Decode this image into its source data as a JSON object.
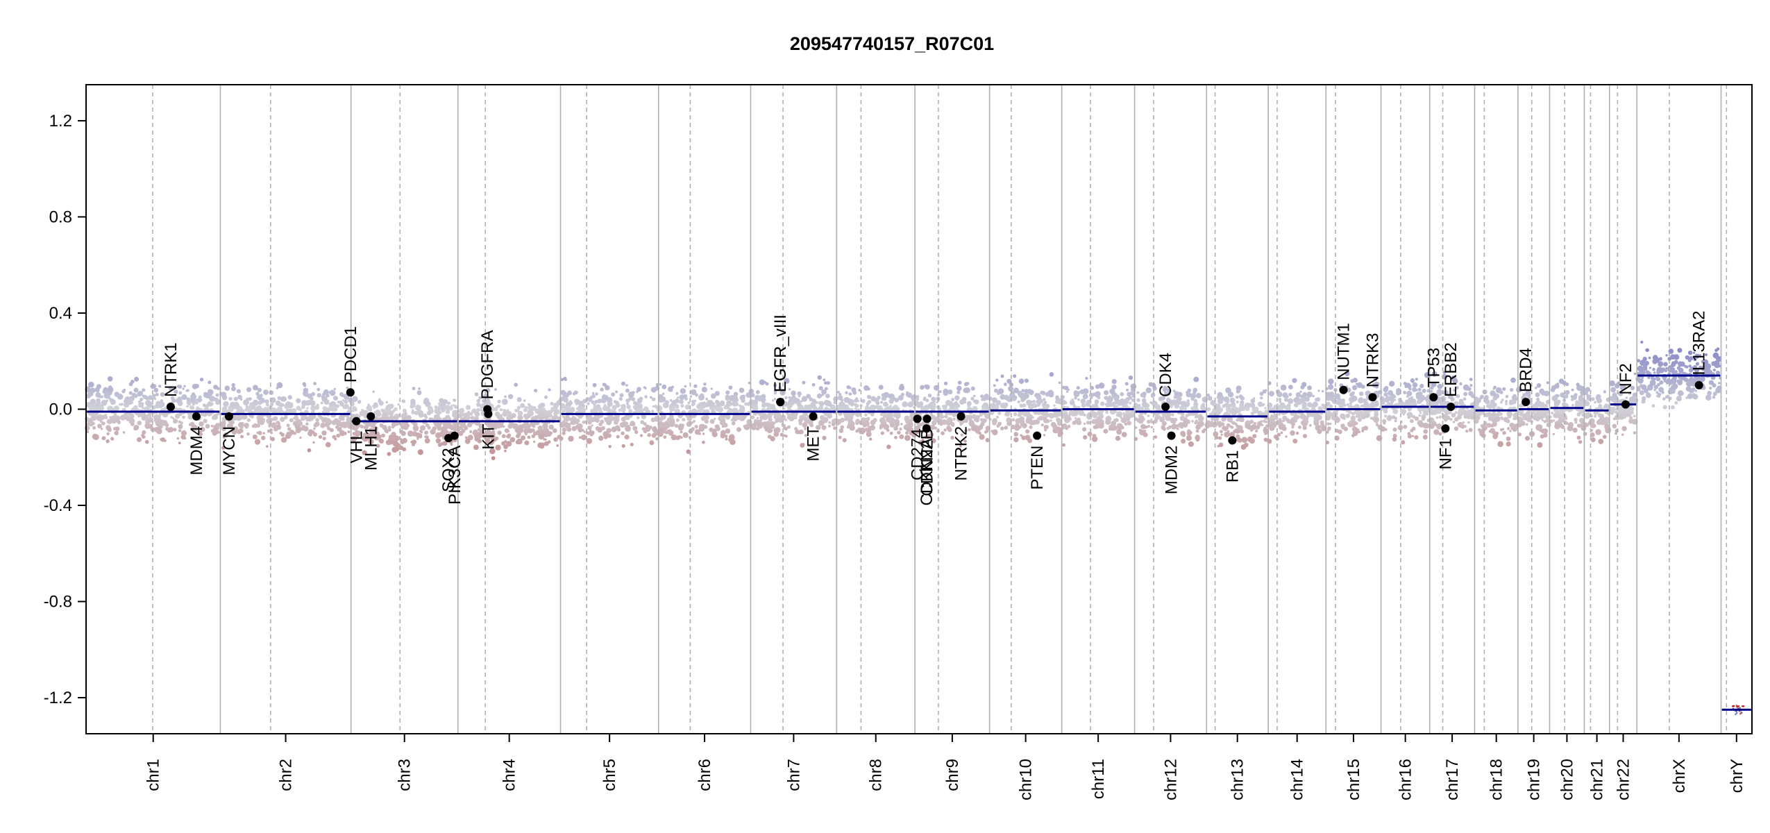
{
  "chart_data": {
    "type": "scatter",
    "title": "209547740157_R07C01",
    "xlabel": "",
    "ylabel": "",
    "ylim": [
      -1.35,
      1.35
    ],
    "yticks": [
      1.2,
      0.8,
      0.4,
      0.0,
      -0.4,
      -0.8,
      -1.2
    ],
    "ytick_labels": [
      "1.2",
      "0.8",
      "0.4",
      "0.0",
      "-0.4",
      "-0.8",
      "-1.2"
    ],
    "grid": false,
    "colors": {
      "gain": "#8a8ac8",
      "loss": "#c08080",
      "neutral": "#d0d0d8",
      "segment": "#00008b",
      "boundary": "#b0b0b0",
      "gene_point": "#000000"
    },
    "chromosomes": [
      {
        "name": "chr1",
        "start": 0.0,
        "end": 248.9,
        "centromere": 123.4,
        "seg": -0.01
      },
      {
        "name": "chr2",
        "start": 248.9,
        "end": 491.1,
        "centromere": 342.0,
        "seg": -0.02
      },
      {
        "name": "chr3",
        "start": 491.1,
        "end": 689.4,
        "centromere": 581.9,
        "seg": -0.05
      },
      {
        "name": "chr4",
        "start": 689.4,
        "end": 879.6,
        "centromere": 740.1,
        "seg": -0.05
      },
      {
        "name": "chr5",
        "start": 879.6,
        "end": 1061.2,
        "centromere": 928.0,
        "seg": -0.02
      },
      {
        "name": "chr6",
        "start": 1061.2,
        "end": 1232.0,
        "centromere": 1120.0,
        "seg": -0.02
      },
      {
        "name": "chr7",
        "start": 1232.0,
        "end": 1391.4,
        "centromere": 1292.0,
        "seg": -0.01
      },
      {
        "name": "chr8",
        "start": 1391.4,
        "end": 1536.5,
        "centromere": 1436.5,
        "seg": -0.01
      },
      {
        "name": "chr9",
        "start": 1536.5,
        "end": 1674.9,
        "centromere": 1580.0,
        "seg": -0.01
      },
      {
        "name": "chr10",
        "start": 1674.9,
        "end": 1808.7,
        "centromere": 1715.0,
        "seg": -0.005
      },
      {
        "name": "chr11",
        "start": 1808.7,
        "end": 1943.8,
        "centromere": 1862.0,
        "seg": 0.0
      },
      {
        "name": "chr12",
        "start": 1943.8,
        "end": 2077.1,
        "centromere": 1979.0,
        "seg": -0.01
      },
      {
        "name": "chr13",
        "start": 2077.1,
        "end": 2191.5,
        "centromere": 2093.0,
        "seg": -0.03
      },
      {
        "name": "chr14",
        "start": 2191.5,
        "end": 2298.5,
        "centromere": 2208.0,
        "seg": -0.01
      },
      {
        "name": "chr15",
        "start": 2298.5,
        "end": 2400.5,
        "centromere": 2316.0,
        "seg": 0.0
      },
      {
        "name": "chr16",
        "start": 2400.5,
        "end": 2490.8,
        "centromere": 2437.0,
        "seg": 0.01
      },
      {
        "name": "chr17",
        "start": 2490.8,
        "end": 2574.1,
        "centromere": 2515.0,
        "seg": 0.01
      },
      {
        "name": "chr18",
        "start": 2574.1,
        "end": 2654.4,
        "centromere": 2592.0,
        "seg": -0.005
      },
      {
        "name": "chr19",
        "start": 2654.4,
        "end": 2713.0,
        "centromere": 2680.0,
        "seg": 0.0
      },
      {
        "name": "chr20",
        "start": 2713.0,
        "end": 2777.4,
        "centromere": 2741.0,
        "seg": 0.005
      },
      {
        "name": "chr21",
        "start": 2777.4,
        "end": 2824.1,
        "centromere": 2789.0,
        "seg": -0.005
      },
      {
        "name": "chr22",
        "start": 2824.1,
        "end": 2874.9,
        "centromere": 2839.0,
        "seg": 0.02
      },
      {
        "name": "chrX",
        "start": 2874.9,
        "end": 3031.0,
        "centromere": 2935.0,
        "seg": 0.14
      },
      {
        "name": "chrY",
        "start": 3031.0,
        "end": 3088.2,
        "centromere": 3041.0,
        "seg": -1.25
      }
    ],
    "genes": [
      {
        "name": "NTRK1",
        "x": 156.8,
        "y": 0.01,
        "side": "above"
      },
      {
        "name": "MDM4",
        "x": 204.5,
        "y": -0.03,
        "side": "below"
      },
      {
        "name": "MYCN",
        "x": 264.9,
        "y": -0.03,
        "side": "below"
      },
      {
        "name": "PDCD1",
        "x": 490.0,
        "y": 0.07,
        "side": "above"
      },
      {
        "name": "VHL",
        "x": 501.0,
        "y": -0.05,
        "side": "below"
      },
      {
        "name": "MLH1",
        "x": 528.0,
        "y": -0.03,
        "side": "below"
      },
      {
        "name": "SOX2",
        "x": 672.0,
        "y": -0.12,
        "side": "below"
      },
      {
        "name": "PIK3CA",
        "x": 683.0,
        "y": -0.11,
        "side": "below"
      },
      {
        "name": "PDGFRA",
        "x": 744.0,
        "y": 0.0,
        "side": "above"
      },
      {
        "name": "KIT",
        "x": 745.5,
        "y": -0.02,
        "side": "below"
      },
      {
        "name": "EGFR",
        "x": 1287.0,
        "y": 0.03,
        "side": "above"
      },
      {
        "name": "EGFR_vIII",
        "x": 1287.0,
        "y": 0.03,
        "side": "above"
      },
      {
        "name": "MET",
        "x": 1348.0,
        "y": -0.03,
        "side": "below"
      },
      {
        "name": "CD274",
        "x": 1541.0,
        "y": -0.04,
        "side": "below"
      },
      {
        "name": "CDKN2A",
        "x": 1558.0,
        "y": -0.08,
        "side": "below"
      },
      {
        "name": "CDKN2B",
        "x": 1559.0,
        "y": -0.04,
        "side": "below"
      },
      {
        "name": "NTRK2",
        "x": 1622.0,
        "y": -0.03,
        "side": "below"
      },
      {
        "name": "PTEN",
        "x": 1763.0,
        "y": -0.11,
        "side": "below"
      },
      {
        "name": "CDK4",
        "x": 2001.0,
        "y": 0.01,
        "side": "above"
      },
      {
        "name": "MDM2",
        "x": 2012.0,
        "y": -0.11,
        "side": "below"
      },
      {
        "name": "RB1",
        "x": 2125.0,
        "y": -0.13,
        "side": "below"
      },
      {
        "name": "NUTM1",
        "x": 2331.0,
        "y": 0.08,
        "side": "above"
      },
      {
        "name": "NTRK3",
        "x": 2385.0,
        "y": 0.05,
        "side": "above"
      },
      {
        "name": "TP53",
        "x": 2498.0,
        "y": 0.05,
        "side": "above"
      },
      {
        "name": "NF1",
        "x": 2520.0,
        "y": -0.08,
        "side": "below"
      },
      {
        "name": "ERBB2",
        "x": 2530.0,
        "y": 0.01,
        "side": "above"
      },
      {
        "name": "BRD4",
        "x": 2669.0,
        "y": 0.03,
        "side": "above"
      },
      {
        "name": "NF2",
        "x": 2854.0,
        "y": 0.02,
        "side": "above"
      },
      {
        "name": "IL13RA2",
        "x": 2990.0,
        "y": 0.1,
        "side": "above"
      }
    ]
  }
}
